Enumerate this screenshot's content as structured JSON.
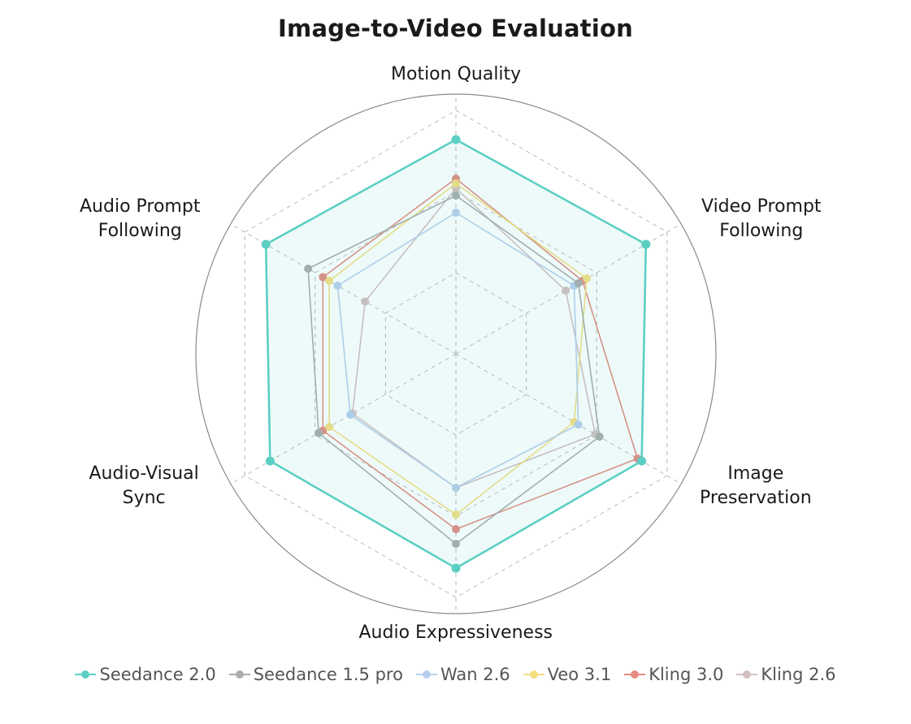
{
  "chart_data": {
    "type": "radar",
    "title": "Image-to-Video Evaluation",
    "axes": [
      [
        "Motion Quality"
      ],
      [
        "Video Prompt",
        "Following"
      ],
      [
        "Image",
        "Preservation"
      ],
      [
        "Audio Expressiveness"
      ],
      [
        "Audio-Visual",
        "Sync"
      ],
      [
        "Audio Prompt",
        "Following"
      ]
    ],
    "scale_max": 100,
    "grid_levels": 3,
    "legend_position": "bottom",
    "series": [
      {
        "name": "Seedance 2.0",
        "color": "#5ccfc4",
        "values": [
          88,
          90,
          88,
          88,
          88,
          90
        ]
      },
      {
        "name": "Seedance 1.5 pro",
        "color": "#a8acab",
        "values": [
          65,
          58,
          68,
          78,
          65,
          70
        ]
      },
      {
        "name": "Wan 2.6",
        "color": "#b7cfee",
        "values": [
          58,
          56,
          58,
          55,
          50,
          56
        ]
      },
      {
        "name": "Veo 3.1",
        "color": "#f3de82",
        "values": [
          70,
          62,
          56,
          66,
          60,
          60
        ]
      },
      {
        "name": "Kling 3.0",
        "color": "#e48c82",
        "values": [
          72,
          60,
          86,
          72,
          63,
          63
        ]
      },
      {
        "name": "Kling 2.6",
        "color": "#d3bfc0",
        "values": [
          68,
          52,
          66,
          55,
          49,
          43
        ]
      }
    ]
  }
}
